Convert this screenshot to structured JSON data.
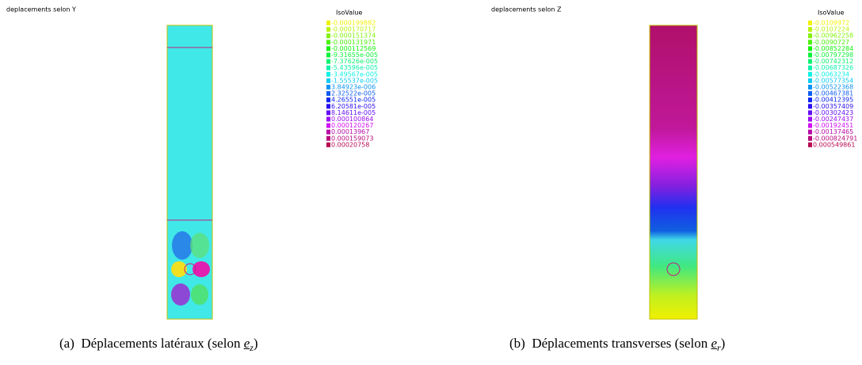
{
  "panels": [
    {
      "title": "deplacements selon Y",
      "legend_title": "IsoValue",
      "legend": [
        "-0.000199882",
        "-0.000170717",
        "-0.000151374",
        "-0.000131971",
        "-0.000112569",
        "-9.31655e-005",
        "-7.37626e-005",
        "-5.43596e-005",
        "-3.49567e-005",
        "-1.55537e-005",
        "3.84923e-006",
        "2.32522e-005",
        "4.26551e-005",
        "6.20581e-005",
        "8.14611e-005",
        "0.000100864",
        "0.000120267",
        "0.00013967",
        "0.000159073",
        "0.00020758"
      ],
      "caption": {
        "label": "(a)",
        "text": "Déplacements latéraux (selon",
        "vector": "e",
        "subscript": "z",
        "close": ")"
      }
    },
    {
      "title": "deplacements selon Z",
      "legend_title": "IsoValue",
      "legend": [
        "-0.0109972",
        "-0.0107224",
        "-0.00962258",
        "-0.0090727",
        "-0.00852284",
        "-0.00797298",
        "-0.00742312",
        "-0.00687326",
        "-0.0063234",
        "-0.00577354",
        "-0.00522368",
        "-0.00467381",
        "-0.00412395",
        "-0.00357409",
        "-0.00302423",
        "-0.00247437",
        "-0.00192451",
        "-0.00137465",
        "-0.000824791",
        "0.000549861"
      ],
      "caption": {
        "label": "(b)",
        "text": "Déplacements transverses (selon",
        "vector": "e",
        "subscript": "r",
        "close": ")"
      }
    }
  ]
}
